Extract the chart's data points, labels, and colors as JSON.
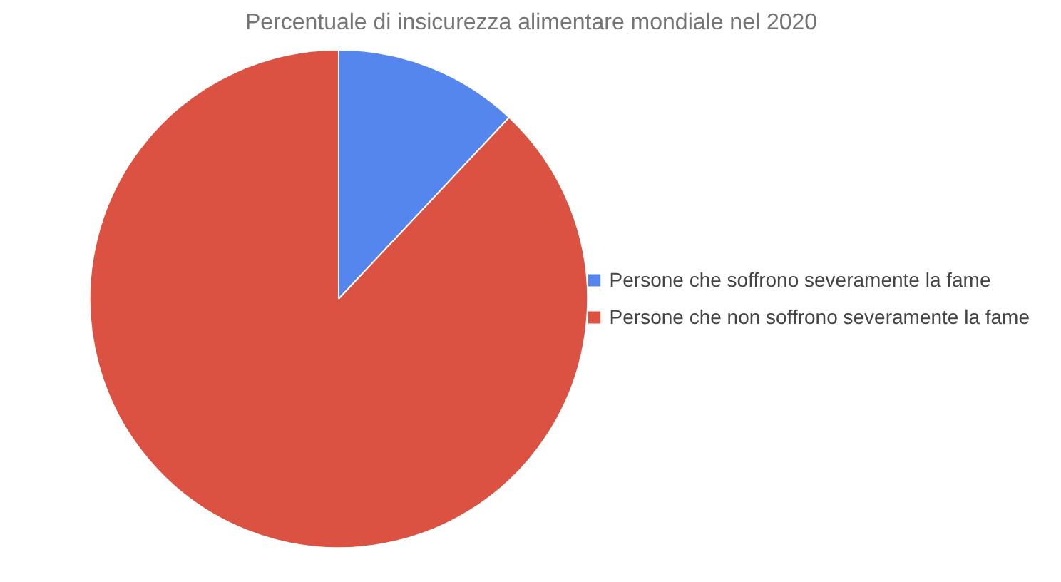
{
  "chart_data": {
    "type": "pie",
    "title": "Percentuale di insicurezza alimentare mondiale nel 2020",
    "categories": [
      "Persone che soffrono severamente la fame",
      "Persone che non soffrono severamente la fame"
    ],
    "values": [
      12,
      88
    ],
    "colors": [
      "#5586ee",
      "#dc5242"
    ],
    "legend": "right"
  }
}
